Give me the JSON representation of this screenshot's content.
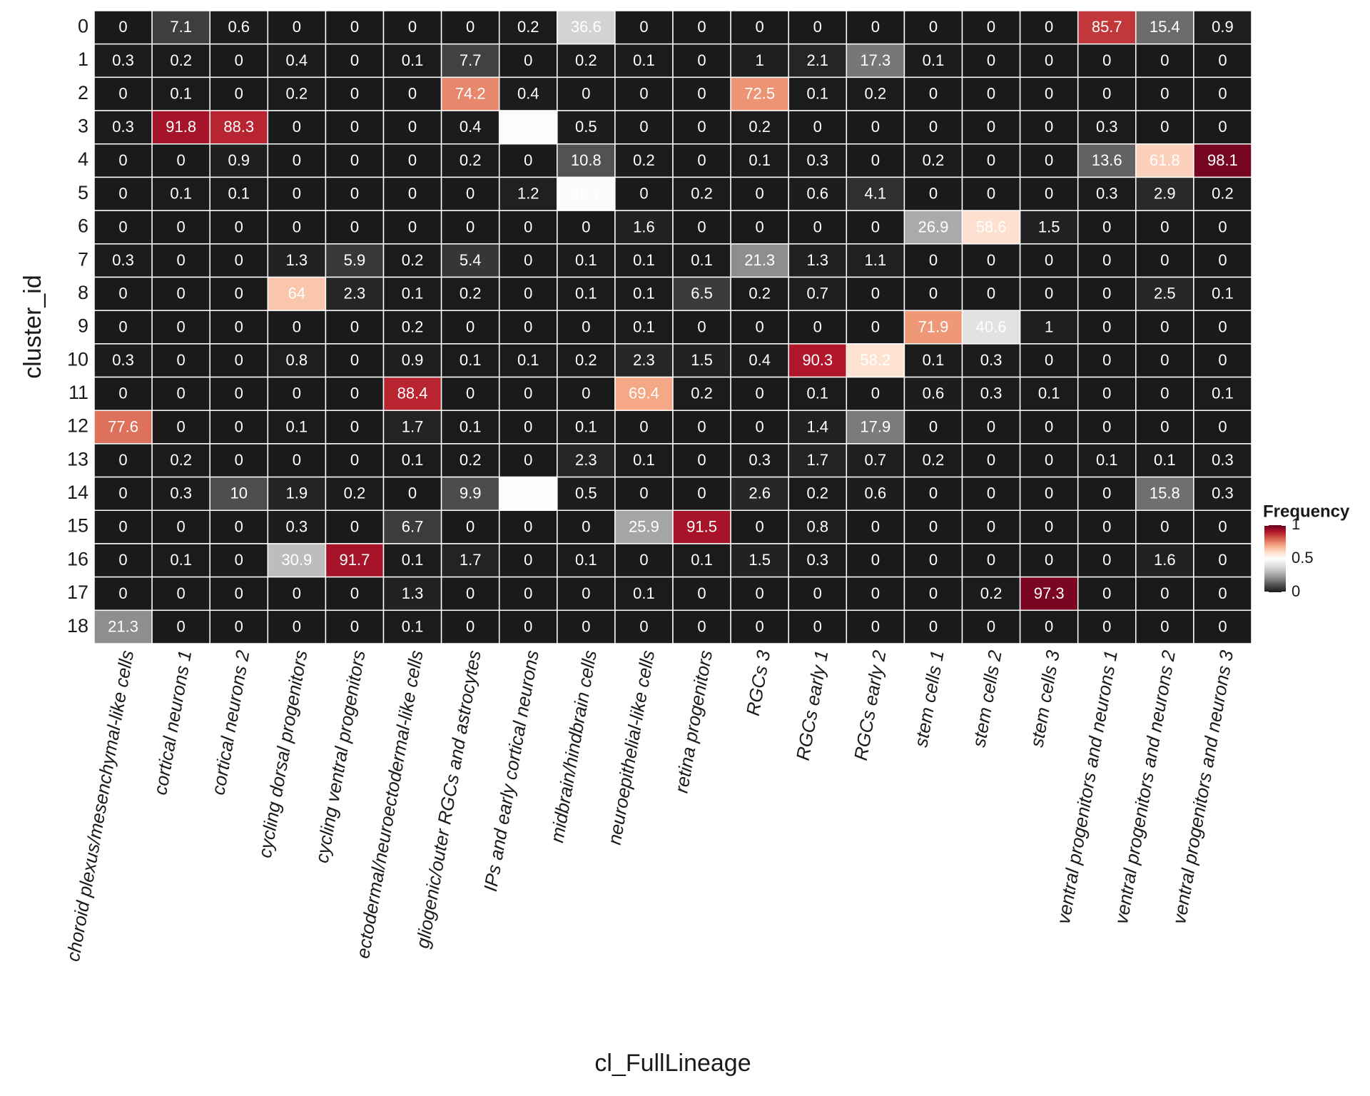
{
  "chart_data": {
    "type": "heatmap",
    "x_label": "cl_FullLineage",
    "y_label": "cluster_id",
    "x_categories": [
      "choroid plexus/mesenchymal-like cells",
      "cortical neurons 1",
      "cortical neurons 2",
      "cycling dorsal progenitors",
      "cycling ventral progenitors",
      "ectodermal/neuroectodermal-like cells",
      "gliogenic/outer RGCs and astrocytes",
      "IPs and early cortical neurons",
      "midbrain/hindbrain cells",
      "neuroepithelial-like cells",
      "retina progenitors",
      "RGCs 3",
      "RGCs early 1",
      "RGCs early 2",
      "stem cells 1",
      "stem cells 2",
      "stem cells 3",
      "ventral progenitors and neurons 1",
      "ventral progenitors and neurons 2",
      "ventral progenitors and neurons 3"
    ],
    "y_categories": [
      "0",
      "1",
      "2",
      "3",
      "4",
      "5",
      "6",
      "7",
      "8",
      "9",
      "10",
      "11",
      "12",
      "13",
      "14",
      "15",
      "16",
      "17",
      "18"
    ],
    "values": [
      [
        0,
        7.1,
        0.6,
        0,
        0,
        0,
        0,
        0.2,
        36.6,
        0,
        0,
        0,
        0,
        0,
        0,
        0,
        0,
        85.7,
        15.4,
        0.9
      ],
      [
        0.3,
        0.2,
        0,
        0.4,
        0,
        0.1,
        7.7,
        0,
        0.2,
        0.1,
        0,
        1,
        2.1,
        17.3,
        0.1,
        0,
        0,
        0,
        0,
        0
      ],
      [
        0,
        0.1,
        0,
        0.2,
        0,
        0,
        74.2,
        0.4,
        0,
        0,
        0,
        72.5,
        0.1,
        0.2,
        0,
        0,
        0,
        0,
        0,
        0
      ],
      [
        0.3,
        91.8,
        88.3,
        0,
        0,
        0,
        0.4,
        48.9,
        0.5,
        0,
        0,
        0.2,
        0,
        0,
        0,
        0,
        0,
        0.3,
        0,
        0
      ],
      [
        0,
        0,
        0.9,
        0,
        0,
        0,
        0.2,
        0,
        10.8,
        0.2,
        0,
        0.1,
        0.3,
        0,
        0.2,
        0,
        0,
        13.6,
        61.8,
        98.1
      ],
      [
        0,
        0.1,
        0.1,
        0,
        0,
        0,
        0,
        1.2,
        48.7,
        0,
        0.2,
        0,
        0.6,
        4.1,
        0,
        0,
        0,
        0.3,
        2.9,
        0.2
      ],
      [
        0,
        0,
        0,
        0,
        0,
        0,
        0,
        0,
        0,
        1.6,
        0,
        0,
        0,
        0,
        26.9,
        58.6,
        1.5,
        0,
        0,
        0
      ],
      [
        0.3,
        0,
        0,
        1.3,
        5.9,
        0.2,
        5.4,
        0,
        0.1,
        0.1,
        0.1,
        21.3,
        1.3,
        1.1,
        0,
        0,
        0,
        0,
        0,
        0
      ],
      [
        0,
        0,
        0,
        64,
        2.3,
        0.1,
        0.2,
        0,
        0.1,
        0.1,
        6.5,
        0.2,
        0.7,
        0,
        0,
        0,
        0,
        0,
        2.5,
        0.1
      ],
      [
        0,
        0,
        0,
        0,
        0,
        0.2,
        0,
        0,
        0,
        0.1,
        0,
        0,
        0,
        0,
        71.9,
        40.6,
        1,
        0,
        0,
        0
      ],
      [
        0.3,
        0,
        0,
        0.8,
        0,
        0.9,
        0.1,
        0.1,
        0.2,
        2.3,
        1.5,
        0.4,
        90.3,
        58.2,
        0.1,
        0.3,
        0,
        0,
        0,
        0
      ],
      [
        0,
        0,
        0,
        0,
        0,
        88.4,
        0,
        0,
        0,
        69.4,
        0.2,
        0,
        0.1,
        0,
        0.6,
        0.3,
        0.1,
        0,
        0,
        0.1
      ],
      [
        77.6,
        0,
        0,
        0.1,
        0,
        1.7,
        0.1,
        0,
        0.1,
        0,
        0,
        0,
        1.4,
        17.9,
        0,
        0,
        0,
        0,
        0,
        0
      ],
      [
        0,
        0.2,
        0,
        0,
        0,
        0.1,
        0.2,
        0,
        2.3,
        0.1,
        0,
        0.3,
        1.7,
        0.7,
        0.2,
        0,
        0,
        0.1,
        0.1,
        0.3
      ],
      [
        0,
        0.3,
        10,
        1.9,
        0.2,
        0,
        9.9,
        49.3,
        0.5,
        0,
        0,
        2.6,
        0.2,
        0.6,
        0,
        0,
        0,
        0,
        15.8,
        0.3
      ],
      [
        0,
        0,
        0,
        0.3,
        0,
        6.7,
        0,
        0,
        0,
        25.9,
        91.5,
        0,
        0.8,
        0,
        0,
        0,
        0,
        0,
        0,
        0
      ],
      [
        0,
        0.1,
        0,
        30.9,
        91.7,
        0.1,
        1.7,
        0,
        0.1,
        0,
        0.1,
        1.5,
        0.3,
        0,
        0,
        0,
        0,
        0,
        1.6,
        0
      ],
      [
        0,
        0,
        0,
        0,
        0,
        1.3,
        0,
        0,
        0,
        0.1,
        0,
        0,
        0,
        0,
        0,
        0.2,
        97.3,
        0,
        0,
        0
      ],
      [
        21.3,
        0,
        0,
        0,
        0,
        0.1,
        0,
        0,
        0,
        0,
        0,
        0,
        0,
        0,
        0,
        0,
        0,
        0,
        0,
        0
      ]
    ],
    "colorbar_title": "Frequency",
    "colorbar_lim": [
      0,
      1
    ],
    "colorbar_ticks": [
      0,
      0.5,
      1
    ],
    "colorscale": [
      "#1a1a1a",
      "#4d4d4d",
      "#878787",
      "#bababa",
      "#e0e0e0",
      "#ffffff",
      "#fddbc7",
      "#f4a582",
      "#d6604d",
      "#b2182b",
      "#67001f"
    ]
  }
}
